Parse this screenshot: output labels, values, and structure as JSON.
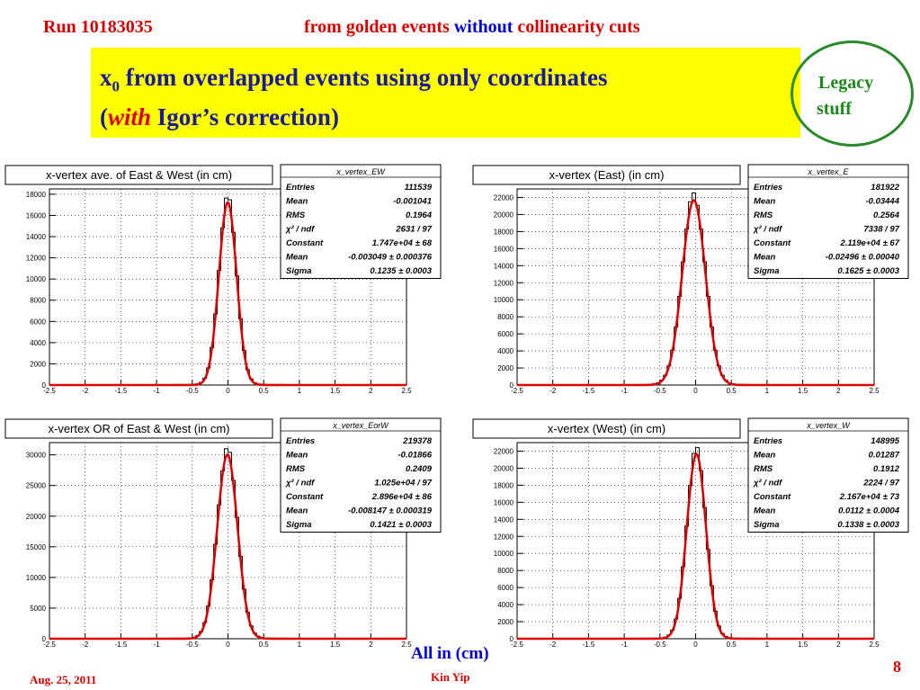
{
  "header": {
    "run": "Run 10183035",
    "cut_part1": "from golden events",
    "cut_part2": "without",
    "cut_part3": "collinearity cuts"
  },
  "title": {
    "line1_prefix": "x",
    "line1_sub": "0",
    "line1_rest": " from overlapped events using only coordinates",
    "line2_open": "(",
    "line2_with": "with",
    "line2_rest": " Igor’s correction)"
  },
  "note": {
    "line1": "Legacy",
    "line2": "stuff"
  },
  "footer": {
    "axis_note": "All in (cm)",
    "date": "Aug. 25, 2011",
    "author": "Kin Yip",
    "page": "8"
  },
  "colors": {
    "fit": "#e00000",
    "histogram": "#000000",
    "title_blue": "#1a1aa0",
    "highlight": "#ffff00",
    "note_green": "#1a8a1a"
  },
  "chart_data": [
    {
      "type": "histogram",
      "title": "x-vertex ave. of East & West (in cm)",
      "xlim": [
        -2.5,
        2.5
      ],
      "ylim": [
        0,
        18500
      ],
      "x_ticks": [
        "-2.5",
        "-2",
        "-1.5",
        "-1",
        "-0.5",
        "0",
        "0.5",
        "1",
        "1.5",
        "2",
        "2.5"
      ],
      "y_ticks": [
        0,
        2000,
        4000,
        6000,
        8000,
        10000,
        12000,
        14000,
        16000,
        18000
      ],
      "peak": 17500,
      "mean": -0.003,
      "sigma": 0.1235,
      "stats_name": "x_vertex_EW",
      "stats": [
        [
          "Entries",
          "111539"
        ],
        [
          "Mean",
          "-0.001041"
        ],
        [
          "RMS",
          "0.1964"
        ],
        [
          "χ² / ndf",
          "2631 / 97"
        ],
        [
          "Constant",
          "1.747e+04 ± 68"
        ],
        [
          "Mean",
          "-0.003049 ± 0.000376"
        ],
        [
          "Sigma",
          "0.1235 ± 0.0003"
        ]
      ]
    },
    {
      "type": "histogram",
      "title": "x-vertex (East) (in cm)",
      "xlim": [
        -2.5,
        2.5
      ],
      "ylim": [
        0,
        23000
      ],
      "x_ticks": [
        "-2.5",
        "-2",
        "-1.5",
        "-1",
        "-0.5",
        "0",
        "0.5",
        "1",
        "1.5",
        "2",
        "2.5"
      ],
      "y_ticks": [
        0,
        2000,
        4000,
        6000,
        8000,
        10000,
        12000,
        14000,
        16000,
        18000,
        20000,
        22000
      ],
      "peak": 22000,
      "mean": -0.025,
      "sigma": 0.1625,
      "stats_name": "x_vertex_E",
      "stats": [
        [
          "Entries",
          "181922"
        ],
        [
          "Mean",
          "-0.03444"
        ],
        [
          "RMS",
          "0.2564"
        ],
        [
          "χ² / ndf",
          "7338 / 97"
        ],
        [
          "Constant",
          "2.119e+04 ± 67"
        ],
        [
          "Mean",
          "-0.02496 ± 0.00040"
        ],
        [
          "Sigma",
          "0.1625 ± 0.0003"
        ]
      ]
    },
    {
      "type": "histogram",
      "title": "x-vertex OR of East & West (in cm)",
      "xlim": [
        -2.5,
        2.5
      ],
      "ylim": [
        0,
        32000
      ],
      "x_ticks": [
        "-2.5",
        "-2",
        "-1.5",
        "-1",
        "-0.5",
        "0",
        "0.5",
        "1",
        "1.5",
        "2",
        "2.5"
      ],
      "y_ticks": [
        0,
        5000,
        10000,
        15000,
        20000,
        25000,
        30000
      ],
      "peak": 30500,
      "mean": -0.008,
      "sigma": 0.1421,
      "stats_name": "x_vertex_EorW",
      "stats": [
        [
          "Entries",
          "219378"
        ],
        [
          "Mean",
          "-0.01866"
        ],
        [
          "RMS",
          "0.2409"
        ],
        [
          "χ² / ndf",
          "1.025e+04 / 97"
        ],
        [
          "Constant",
          "2.896e+04 ± 86"
        ],
        [
          "Mean",
          "-0.008147 ± 0.000319"
        ],
        [
          "Sigma",
          "0.1421 ± 0.0003"
        ]
      ]
    },
    {
      "type": "histogram",
      "title": "x-vertex (West) (in cm)",
      "xlim": [
        -2.5,
        2.5
      ],
      "ylim": [
        0,
        23000
      ],
      "x_ticks": [
        "-2.5",
        "-2",
        "-1.5",
        "-1",
        "-0.5",
        "0",
        "0.5",
        "1",
        "1.5",
        "2",
        "2.5"
      ],
      "y_ticks": [
        0,
        2000,
        4000,
        6000,
        8000,
        10000,
        12000,
        14000,
        16000,
        18000,
        20000,
        22000
      ],
      "peak": 22000,
      "mean": 0.011,
      "sigma": 0.1338,
      "stats_name": "x_vertex_W",
      "stats": [
        [
          "Entries",
          "148995"
        ],
        [
          "Mean",
          "0.01287"
        ],
        [
          "RMS",
          "0.1912"
        ],
        [
          "χ² / ndf",
          "2224 / 97"
        ],
        [
          "Constant",
          "2.167e+04 ± 73"
        ],
        [
          "Mean",
          "0.0112 ± 0.0004"
        ],
        [
          "Sigma",
          "0.1338 ± 0.0003"
        ]
      ]
    }
  ]
}
